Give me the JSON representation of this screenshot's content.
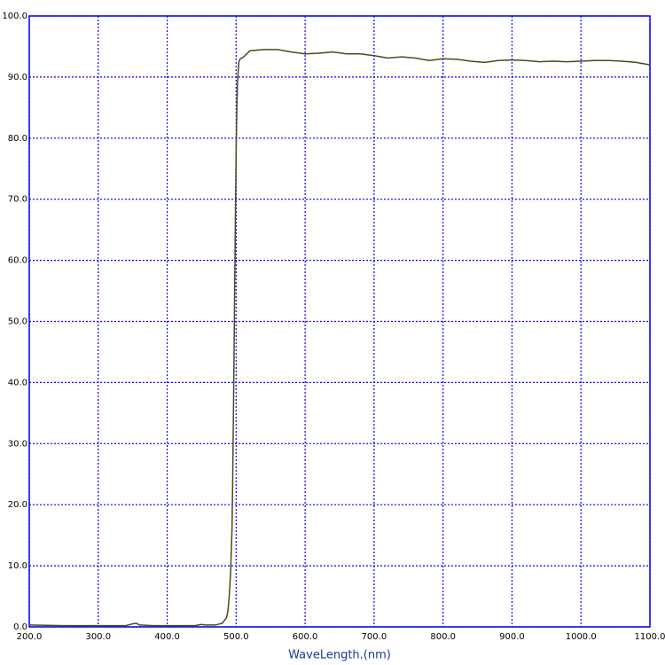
{
  "chart_data": {
    "type": "line",
    "x_label": "WaveLength.(nm)",
    "x": [
      200,
      250,
      300,
      340,
      350,
      355,
      360,
      380,
      420,
      440,
      450,
      455,
      470,
      480,
      486,
      488,
      490,
      492,
      494,
      495,
      496,
      497,
      498,
      499,
      500,
      501,
      502,
      503,
      504,
      506,
      510,
      520,
      540,
      560,
      580,
      600,
      620,
      640,
      660,
      680,
      700,
      720,
      740,
      760,
      780,
      800,
      820,
      840,
      860,
      880,
      900,
      920,
      940,
      960,
      980,
      1000,
      1020,
      1040,
      1060,
      1080,
      1100
    ],
    "values": [
      0.3,
      0.2,
      0.2,
      0.2,
      0.5,
      0.6,
      0.3,
      0.2,
      0.2,
      0.2,
      0.4,
      0.3,
      0.3,
      0.6,
      1.5,
      2.5,
      5,
      9,
      16,
      24,
      34,
      45,
      57,
      68,
      78,
      85,
      89,
      91,
      92.5,
      93,
      93.2,
      94.3,
      94.5,
      94.5,
      94.1,
      93.8,
      93.9,
      94.1,
      93.8,
      93.8,
      93.5,
      93.1,
      93.3,
      93.1,
      92.7,
      93.0,
      92.9,
      92.6,
      92.4,
      92.7,
      92.8,
      92.7,
      92.5,
      92.6,
      92.5,
      92.6,
      92.7,
      92.7,
      92.6,
      92.4,
      92.0
    ],
    "color": "#4a4a1c",
    "grid": true,
    "grid_color": "#0000ff",
    "frame_color": "#0000ff",
    "xlim": [
      200,
      1100
    ],
    "xticks": [
      {
        "value": 200,
        "label": "200.0"
      },
      {
        "value": 300,
        "label": "300.0"
      },
      {
        "value": 400,
        "label": "400.0"
      },
      {
        "value": 500,
        "label": "500.0"
      },
      {
        "value": 600,
        "label": "600.0"
      },
      {
        "value": 700,
        "label": "700.0"
      },
      {
        "value": 800,
        "label": "800.0"
      },
      {
        "value": 900,
        "label": "900.0"
      },
      {
        "value": 1000,
        "label": "1000.0"
      },
      {
        "value": 1100,
        "label": "1100.0"
      }
    ],
    "ylim": [
      0,
      100
    ],
    "yticks": [
      {
        "value": 0,
        "label": "0.0"
      },
      {
        "value": 10,
        "label": "10.0"
      },
      {
        "value": 20,
        "label": "20.0"
      },
      {
        "value": 30,
        "label": "30.0"
      },
      {
        "value": 40,
        "label": "40.0"
      },
      {
        "value": 50,
        "label": "50.0"
      },
      {
        "value": 60,
        "label": "60.0"
      },
      {
        "value": 70,
        "label": "70.0"
      },
      {
        "value": 80,
        "label": "80.0"
      },
      {
        "value": 90,
        "label": "90.0"
      },
      {
        "value": 100,
        "label": "100.0"
      }
    ]
  }
}
